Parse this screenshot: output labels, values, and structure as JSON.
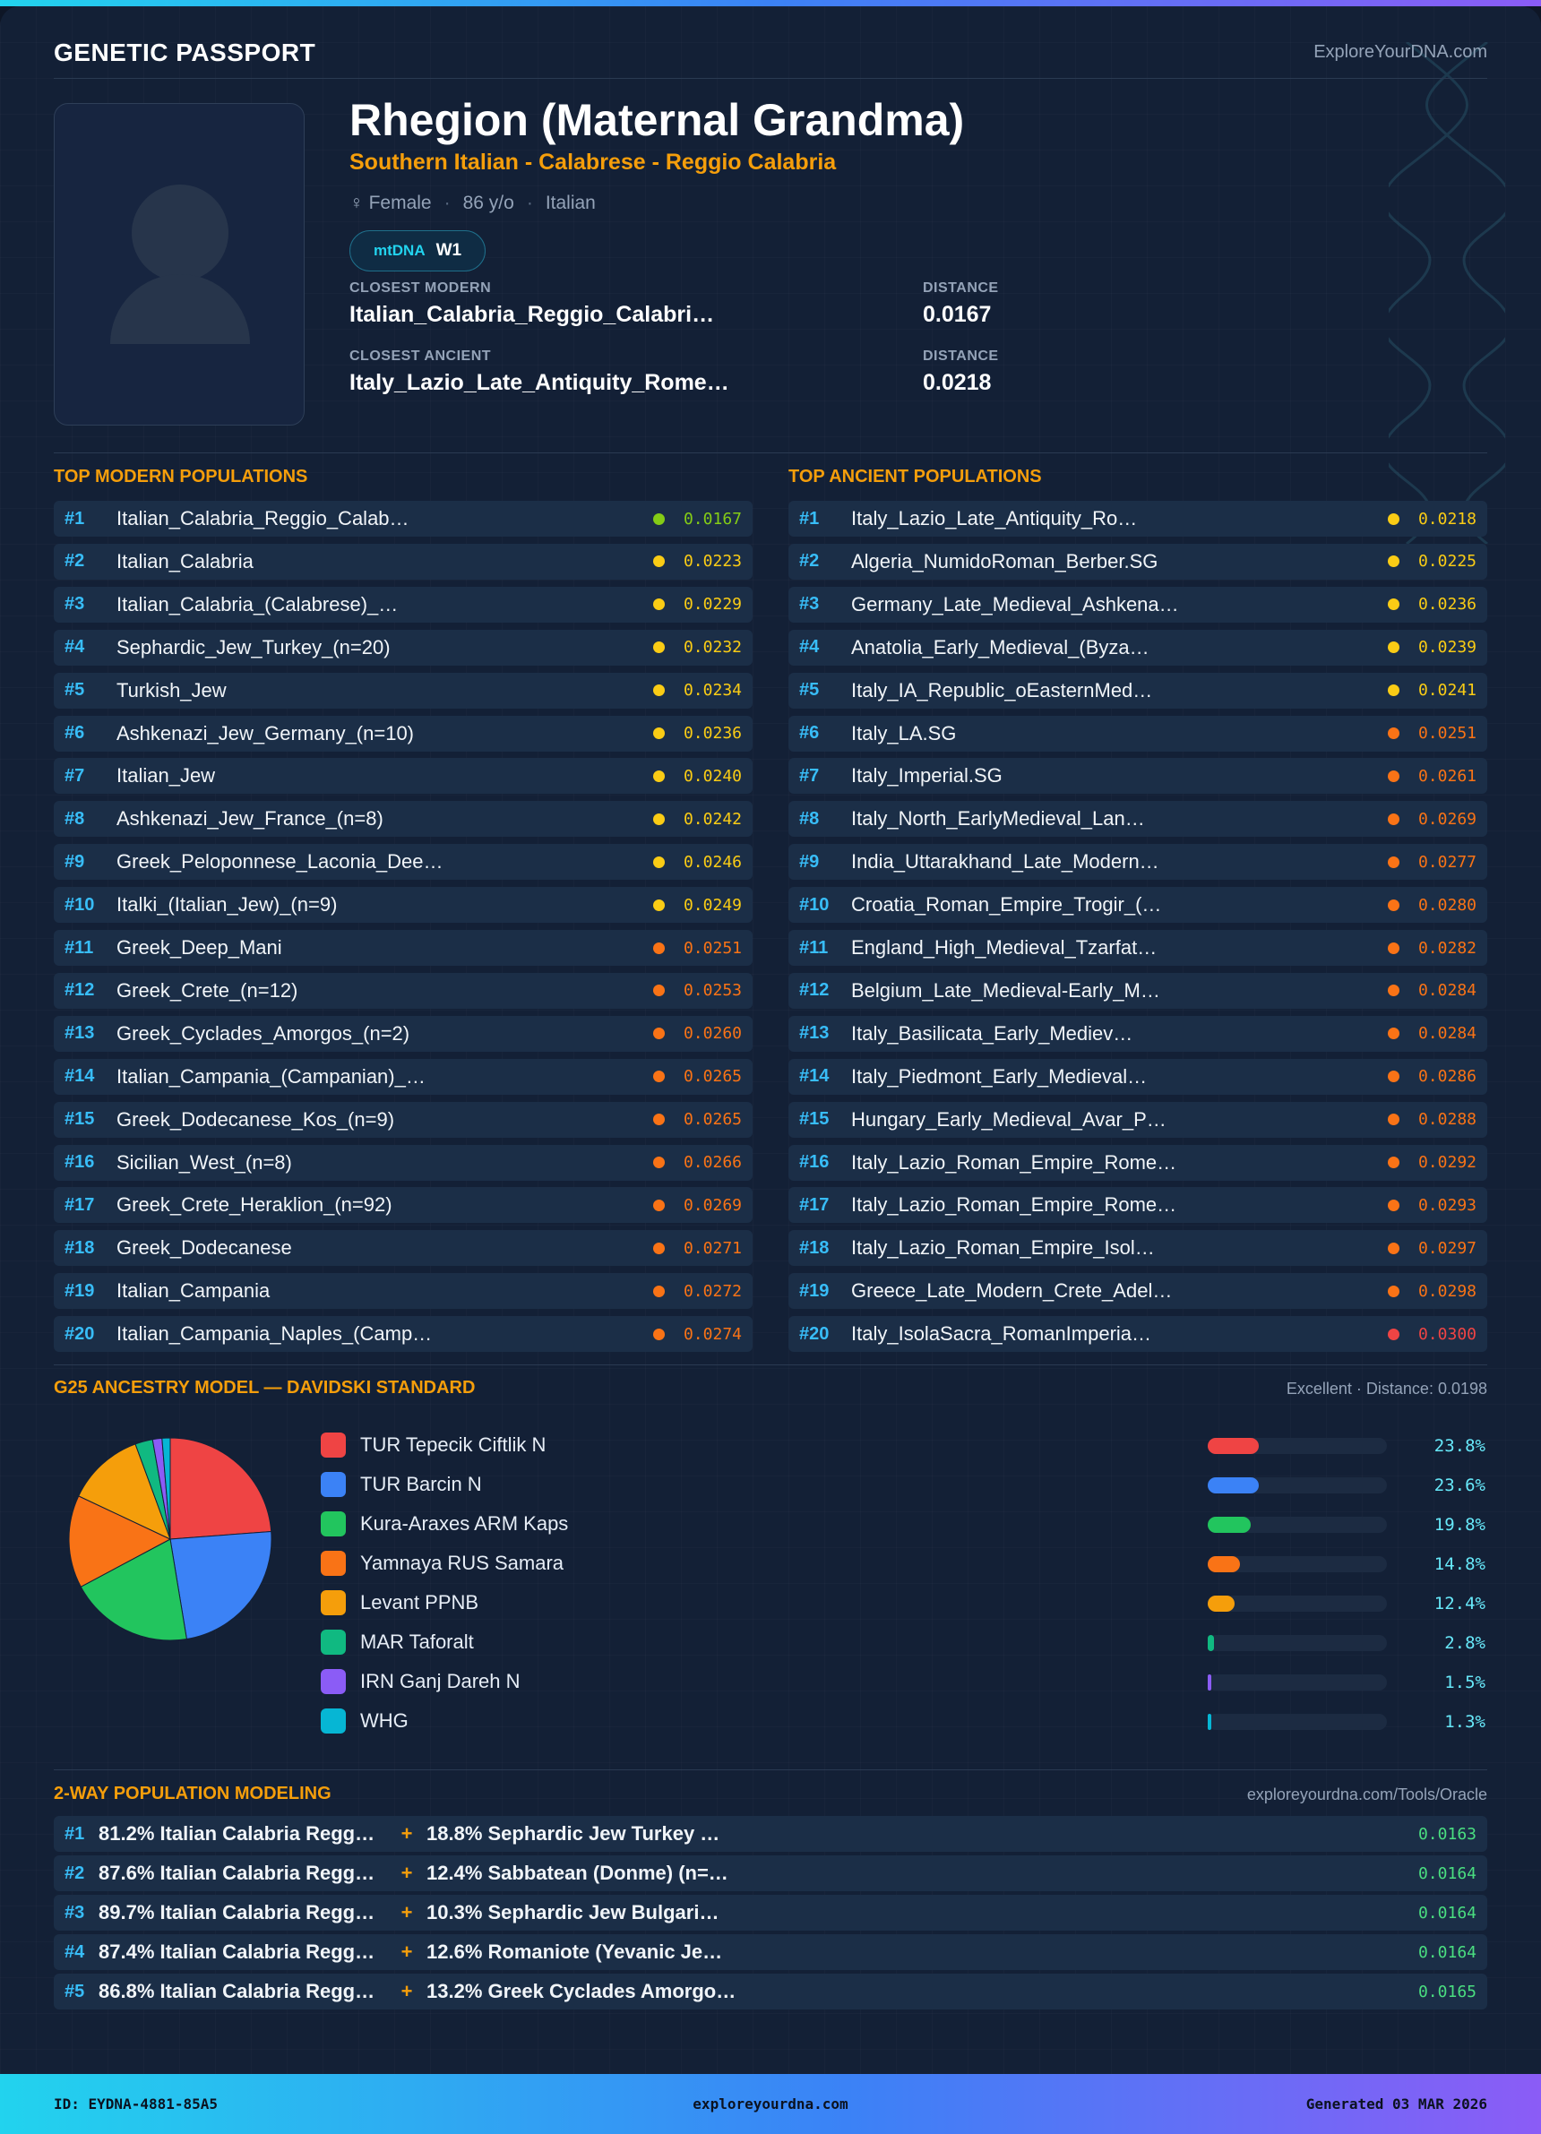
{
  "header": {
    "brand": "GENETIC PASSPORT",
    "site": "ExploreYourDNA.com"
  },
  "profile": {
    "name": "Rhegion (Maternal Grandma)",
    "subtitle": "Southern Italian - Calabrese - Reggio Calabria",
    "gender": "♀ Female",
    "age": "86 y/o",
    "ethnicity": "Italian",
    "haplogroup_label": "mtDNA",
    "haplogroup": "W1",
    "closest_modern_label": "CLOSEST MODERN",
    "closest_modern": "Italian_Calabria_Reggio_Calabri…",
    "closest_modern_distance_label": "DISTANCE",
    "closest_modern_distance": "0.0167",
    "closest_ancient_label": "CLOSEST ANCIENT",
    "closest_ancient": "Italy_Lazio_Late_Antiquity_Rome…",
    "closest_ancient_distance_label": "DISTANCE",
    "closest_ancient_distance": "0.0218"
  },
  "modern": {
    "title": "TOP MODERN POPULATIONS",
    "rows": [
      {
        "rank": "#1",
        "name": "Italian_Calabria_Reggio_Calab…",
        "distance": "0.0167",
        "color": "#84cc16"
      },
      {
        "rank": "#2",
        "name": "Italian_Calabria",
        "distance": "0.0223",
        "color": "#facc15"
      },
      {
        "rank": "#3",
        "name": "Italian_Calabria_(Calabrese)_…",
        "distance": "0.0229",
        "color": "#facc15"
      },
      {
        "rank": "#4",
        "name": "Sephardic_Jew_Turkey_(n=20)",
        "distance": "0.0232",
        "color": "#facc15"
      },
      {
        "rank": "#5",
        "name": "Turkish_Jew",
        "distance": "0.0234",
        "color": "#facc15"
      },
      {
        "rank": "#6",
        "name": "Ashkenazi_Jew_Germany_(n=10)",
        "distance": "0.0236",
        "color": "#facc15"
      },
      {
        "rank": "#7",
        "name": "Italian_Jew",
        "distance": "0.0240",
        "color": "#facc15"
      },
      {
        "rank": "#8",
        "name": "Ashkenazi_Jew_France_(n=8)",
        "distance": "0.0242",
        "color": "#facc15"
      },
      {
        "rank": "#9",
        "name": "Greek_Peloponnese_Laconia_Dee…",
        "distance": "0.0246",
        "color": "#facc15"
      },
      {
        "rank": "#10",
        "name": "Italki_(Italian_Jew)_(n=9)",
        "distance": "0.0249",
        "color": "#facc15"
      },
      {
        "rank": "#11",
        "name": "Greek_Deep_Mani",
        "distance": "0.0251",
        "color": "#f97316"
      },
      {
        "rank": "#12",
        "name": "Greek_Crete_(n=12)",
        "distance": "0.0253",
        "color": "#f97316"
      },
      {
        "rank": "#13",
        "name": "Greek_Cyclades_Amorgos_(n=2)",
        "distance": "0.0260",
        "color": "#f97316"
      },
      {
        "rank": "#14",
        "name": "Italian_Campania_(Campanian)_…",
        "distance": "0.0265",
        "color": "#f97316"
      },
      {
        "rank": "#15",
        "name": "Greek_Dodecanese_Kos_(n=9)",
        "distance": "0.0265",
        "color": "#f97316"
      },
      {
        "rank": "#16",
        "name": "Sicilian_West_(n=8)",
        "distance": "0.0266",
        "color": "#f97316"
      },
      {
        "rank": "#17",
        "name": "Greek_Crete_Heraklion_(n=92)",
        "distance": "0.0269",
        "color": "#f97316"
      },
      {
        "rank": "#18",
        "name": "Greek_Dodecanese",
        "distance": "0.0271",
        "color": "#f97316"
      },
      {
        "rank": "#19",
        "name": "Italian_Campania",
        "distance": "0.0272",
        "color": "#f97316"
      },
      {
        "rank": "#20",
        "name": "Italian_Campania_Naples_(Camp…",
        "distance": "0.0274",
        "color": "#f97316"
      }
    ]
  },
  "ancient": {
    "title": "TOP ANCIENT POPULATIONS",
    "rows": [
      {
        "rank": "#1",
        "name": "Italy_Lazio_Late_Antiquity_Ro…",
        "distance": "0.0218",
        "color": "#facc15"
      },
      {
        "rank": "#2",
        "name": "Algeria_NumidoRoman_Berber.SG",
        "distance": "0.0225",
        "color": "#facc15"
      },
      {
        "rank": "#3",
        "name": "Germany_Late_Medieval_Ashkena…",
        "distance": "0.0236",
        "color": "#facc15"
      },
      {
        "rank": "#4",
        "name": "Anatolia_Early_Medieval_(Byza…",
        "distance": "0.0239",
        "color": "#facc15"
      },
      {
        "rank": "#5",
        "name": "Italy_IA_Republic_oEasternMed…",
        "distance": "0.0241",
        "color": "#facc15"
      },
      {
        "rank": "#6",
        "name": "Italy_LA.SG",
        "distance": "0.0251",
        "color": "#f97316"
      },
      {
        "rank": "#7",
        "name": "Italy_Imperial.SG",
        "distance": "0.0261",
        "color": "#f97316"
      },
      {
        "rank": "#8",
        "name": "Italy_North_EarlyMedieval_Lan…",
        "distance": "0.0269",
        "color": "#f97316"
      },
      {
        "rank": "#9",
        "name": "India_Uttarakhand_Late_Modern…",
        "distance": "0.0277",
        "color": "#f97316"
      },
      {
        "rank": "#10",
        "name": "Croatia_Roman_Empire_Trogir_(…",
        "distance": "0.0280",
        "color": "#f97316"
      },
      {
        "rank": "#11",
        "name": "England_High_Medieval_Tzarfat…",
        "distance": "0.0282",
        "color": "#f97316"
      },
      {
        "rank": "#12",
        "name": "Belgium_Late_Medieval-Early_M…",
        "distance": "0.0284",
        "color": "#f97316"
      },
      {
        "rank": "#13",
        "name": "Italy_Basilicata_Early_Mediev…",
        "distance": "0.0284",
        "color": "#f97316"
      },
      {
        "rank": "#14",
        "name": "Italy_Piedmont_Early_Medieval…",
        "distance": "0.0286",
        "color": "#f97316"
      },
      {
        "rank": "#15",
        "name": "Hungary_Early_Medieval_Avar_P…",
        "distance": "0.0288",
        "color": "#f97316"
      },
      {
        "rank": "#16",
        "name": "Italy_Lazio_Roman_Empire_Rome…",
        "distance": "0.0292",
        "color": "#f97316"
      },
      {
        "rank": "#17",
        "name": "Italy_Lazio_Roman_Empire_Rome…",
        "distance": "0.0293",
        "color": "#f97316"
      },
      {
        "rank": "#18",
        "name": "Italy_Lazio_Roman_Empire_Isol…",
        "distance": "0.0297",
        "color": "#f97316"
      },
      {
        "rank": "#19",
        "name": "Greece_Late_Modern_Crete_Adel…",
        "distance": "0.0298",
        "color": "#f97316"
      },
      {
        "rank": "#20",
        "name": "Italy_IsolaSacra_RomanImperia…",
        "distance": "0.0300",
        "color": "#ef4444"
      }
    ]
  },
  "g25": {
    "title": "G25 ANCESTRY MODEL — DAVIDSKI STANDARD",
    "fit": "Excellent · Distance: 0.0198"
  },
  "chart_data": {
    "type": "pie",
    "categories": [
      "TUR Tepecik Ciftlik N",
      "TUR Barcin N",
      "Kura-Araxes ARM Kaps",
      "Yamnaya RUS Samara",
      "Levant PPNB",
      "MAR Taforalt",
      "IRN Ganj Dareh N",
      "WHG"
    ],
    "values": [
      23.8,
      23.6,
      19.8,
      14.8,
      12.4,
      2.8,
      1.5,
      1.3
    ],
    "labels": [
      "23.8%",
      "23.6%",
      "19.8%",
      "14.8%",
      "12.4%",
      "2.8%",
      "1.5%",
      "1.3%"
    ],
    "colors": [
      "#ef4444",
      "#3b82f6",
      "#22c55e",
      "#f97316",
      "#f59e0b",
      "#10b981",
      "#8b5cf6",
      "#06b6d4"
    ]
  },
  "twoway": {
    "title": "2-WAY POPULATION MODELING",
    "source": "exploreyourdna.com/Tools/Oracle",
    "rows": [
      {
        "rank": "#1",
        "a": "81.2% Italian Calabria Regg…",
        "plus": "+",
        "b": "18.8% Sephardic Jew Turkey …",
        "distance": "0.0163"
      },
      {
        "rank": "#2",
        "a": "87.6% Italian Calabria Regg…",
        "plus": "+",
        "b": "12.4% Sabbatean (Donme) (n=…",
        "distance": "0.0164"
      },
      {
        "rank": "#3",
        "a": "89.7% Italian Calabria Regg…",
        "plus": "+",
        "b": "10.3% Sephardic Jew Bulgari…",
        "distance": "0.0164"
      },
      {
        "rank": "#4",
        "a": "87.4% Italian Calabria Regg…",
        "plus": "+",
        "b": "12.6% Romaniote (Yevanic Je…",
        "distance": "0.0164"
      },
      {
        "rank": "#5",
        "a": "86.8% Italian Calabria Regg…",
        "plus": "+",
        "b": "13.2% Greek Cyclades Amorgo…",
        "distance": "0.0165"
      }
    ]
  },
  "footer": {
    "id": "ID: EYDNA-4881-85A5",
    "site": "exploreyourdna.com",
    "generated": "Generated 03 MAR 2026"
  }
}
